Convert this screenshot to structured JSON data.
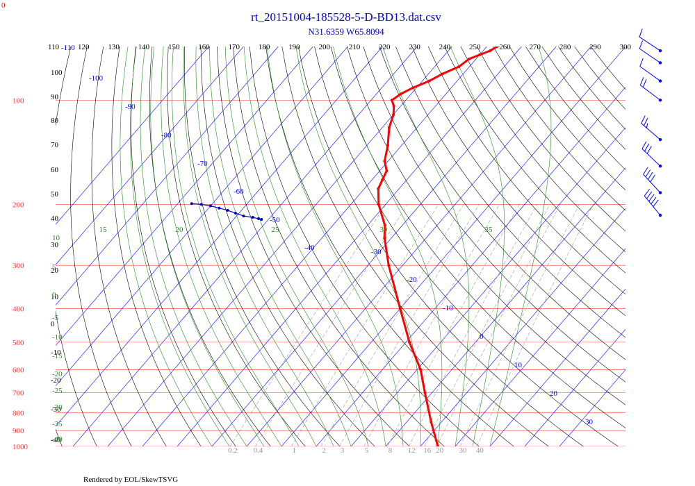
{
  "title": "rt_20151004-185528-5-D-BD13.dat.csv",
  "subtitle": "N31.6359 W65.8094",
  "footer": "Rendered by EOL/SkewTSVG",
  "corner_label": "0",
  "colors": {
    "isobar": "#ff3333",
    "isotherm": "#0000ff",
    "dry_adiabat": "#000000",
    "moist_adiabat": "#228b22",
    "mixing_ratio": "#999999",
    "temperature_trace": "#ff0000",
    "dewpoint_trace": "#0000cc",
    "wind_barb": "#0000ff"
  },
  "chart_data": {
    "type": "skew-t",
    "pressure_levels_hPa": [
      "100",
      "200",
      "300",
      "400",
      "500",
      "600",
      "700",
      "800",
      "900",
      "1000"
    ],
    "isotherm_labels_C": [
      "-110",
      "-100",
      "-90",
      "-80",
      "-70",
      "-60",
      "-50",
      "-40",
      "-30",
      "-20",
      "-10",
      "0",
      "10",
      "20",
      "30"
    ],
    "dry_adiabat_top_labels_K": [
      "110",
      "120",
      "130",
      "140",
      "150",
      "160",
      "170",
      "180",
      "190",
      "200",
      "210",
      "220",
      "230",
      "240",
      "250",
      "260",
      "270",
      "280",
      "290",
      "300"
    ],
    "dry_adiabat_left_labels": [
      "100",
      "90",
      "80",
      "70",
      "60",
      "50",
      "40",
      "30",
      "20",
      "10",
      "0",
      "-10",
      "-20",
      "-30",
      "-40"
    ],
    "moist_adiabat_labels": [
      "15",
      "20",
      "25",
      "30",
      "35"
    ],
    "moist_adiabat_left_labels": [
      "10",
      "5",
      "0",
      "-5",
      "-10",
      "-15",
      "-20",
      "-25",
      "-30",
      "-35",
      "-40"
    ],
    "mixing_ratio_labels_gkg": [
      "0.2",
      "0.4",
      "1",
      "2",
      "3",
      "5",
      "8",
      "12",
      "16",
      "20",
      "30",
      "40"
    ],
    "series": [
      {
        "series_kind": "temperature",
        "points": [
          [
            1000,
            25
          ],
          [
            850,
            17
          ],
          [
            700,
            8
          ],
          [
            600,
            1
          ],
          [
            500,
            -9
          ],
          [
            400,
            -20
          ],
          [
            300,
            -34
          ],
          [
            250,
            -42
          ],
          [
            230,
            -45
          ],
          [
            200,
            -52
          ],
          [
            180,
            -56
          ],
          [
            170,
            -57
          ],
          [
            160,
            -58
          ],
          [
            150,
            -61
          ],
          [
            135,
            -64
          ],
          [
            120,
            -68
          ],
          [
            110,
            -70
          ],
          [
            104,
            -72
          ],
          [
            100,
            -74
          ],
          [
            96,
            -73
          ],
          [
            92,
            -71
          ],
          [
            88,
            -68
          ],
          [
            84,
            -66
          ],
          [
            80,
            -63
          ],
          [
            76,
            -62
          ],
          [
            74,
            -60
          ],
          [
            72,
            -58
          ],
          [
            70,
            -57
          ],
          [
            69,
            -56
          ]
        ]
      },
      {
        "series_kind": "dewpoint",
        "points": [
          [
            199,
            -106
          ],
          [
            200,
            -103
          ],
          [
            202,
            -100
          ],
          [
            205,
            -97
          ],
          [
            208,
            -94
          ],
          [
            212,
            -91
          ],
          [
            216,
            -88
          ],
          [
            218,
            -85
          ],
          [
            220,
            -83
          ],
          [
            221,
            -82
          ]
        ]
      }
    ],
    "wind_barbs": [
      {
        "pressure": 72,
        "speed_kt": 10
      },
      {
        "pressure": 78,
        "speed_kt": 10
      },
      {
        "pressure": 88,
        "speed_kt": 10
      },
      {
        "pressure": 100,
        "speed_kt": 20
      },
      {
        "pressure": 130,
        "speed_kt": 25
      },
      {
        "pressure": 155,
        "speed_kt": 30
      },
      {
        "pressure": 185,
        "speed_kt": 40
      },
      {
        "pressure": 215,
        "speed_kt": 50
      }
    ]
  }
}
